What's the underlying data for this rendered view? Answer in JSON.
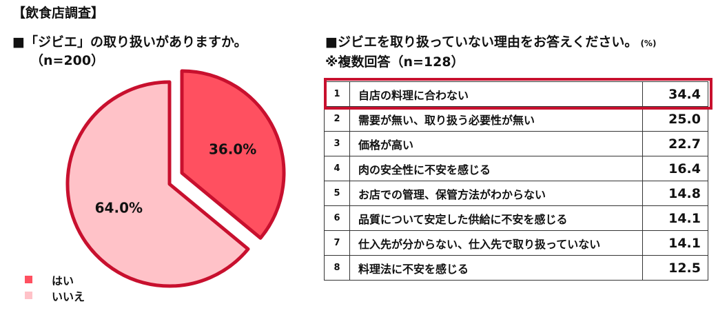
{
  "survey_title": "【飲食店調査】",
  "pie_heading": {
    "line1": "■「ジビエ」の取り扱いがありますか。",
    "line2": "（n=200）"
  },
  "table_heading": {
    "line1": "■ジビエを取り扱っていない理由をお答えください。",
    "unit": "(%)",
    "line2": "※複数回答（n=128）"
  },
  "colors": {
    "yes": "#ff5060",
    "no": "#ffc2c8",
    "outline": "#c8102e",
    "text": "#111111"
  },
  "chart_data": [
    {
      "type": "pie",
      "title": "「ジビエ」の取り扱いがありますか。",
      "categories": [
        "はい",
        "いいえ"
      ],
      "values": [
        36.0,
        64.0
      ],
      "value_labels": [
        "36.0%",
        "64.0%"
      ],
      "legend": {
        "position": "bottom-left",
        "entries": [
          "はい",
          "いいえ"
        ]
      }
    },
    {
      "type": "table",
      "title": "ジビエを取り扱っていない理由をお答えください。",
      "unit": "(%)",
      "highlighted_rank": 1,
      "rows": [
        {
          "rank": "1",
          "label": "自店の料理に合わない",
          "value": "34.4"
        },
        {
          "rank": "2",
          "label": "需要が無い、取り扱う必要性が無い",
          "value": "25.0"
        },
        {
          "rank": "3",
          "label": "価格が高い",
          "value": "22.7"
        },
        {
          "rank": "4",
          "label": "肉の安全性に不安を感じる",
          "value": "16.4"
        },
        {
          "rank": "5",
          "label": "お店での管理、保管方法がわからない",
          "value": "14.8"
        },
        {
          "rank": "6",
          "label": "品質について安定した供給に不安を感じる",
          "value": "14.1"
        },
        {
          "rank": "7",
          "label": "仕入先が分からない、仕入先で取り扱っていない",
          "value": "14.1"
        },
        {
          "rank": "8",
          "label": "料理法に不安を感じる",
          "value": "12.5"
        }
      ]
    }
  ]
}
